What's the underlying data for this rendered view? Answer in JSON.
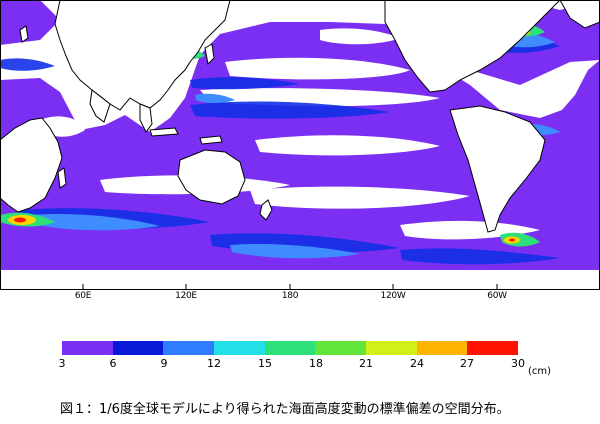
{
  "figure": {
    "caption": "図１：1/6度全球モデルにより得られた海面高度変動の標準偏差の空間分布。"
  },
  "map": {
    "longitude_labels": [
      "60E",
      "120E",
      "180",
      "120W",
      "60W"
    ],
    "background_land": "#ffffff",
    "coastline_color": "#000000"
  },
  "legend": {
    "unit": "(cm)",
    "ticks": [
      "3",
      "6",
      "9",
      "12",
      "15",
      "18",
      "21",
      "24",
      "27",
      "30"
    ],
    "colors": [
      "#7b2ff2",
      "#0a18d8",
      "#2f7cff",
      "#22e0e6",
      "#2ee07a",
      "#62e43a",
      "#d2ef18",
      "#ffb400",
      "#ff1200"
    ]
  },
  "colors": {
    "purple": "#7b2ff2",
    "blue": "#1230e6",
    "lightblue": "#3f8cff",
    "cyan": "#22e0e6",
    "green": "#2ee07a",
    "yellow": "#ffd500",
    "red": "#ff1a00"
  }
}
